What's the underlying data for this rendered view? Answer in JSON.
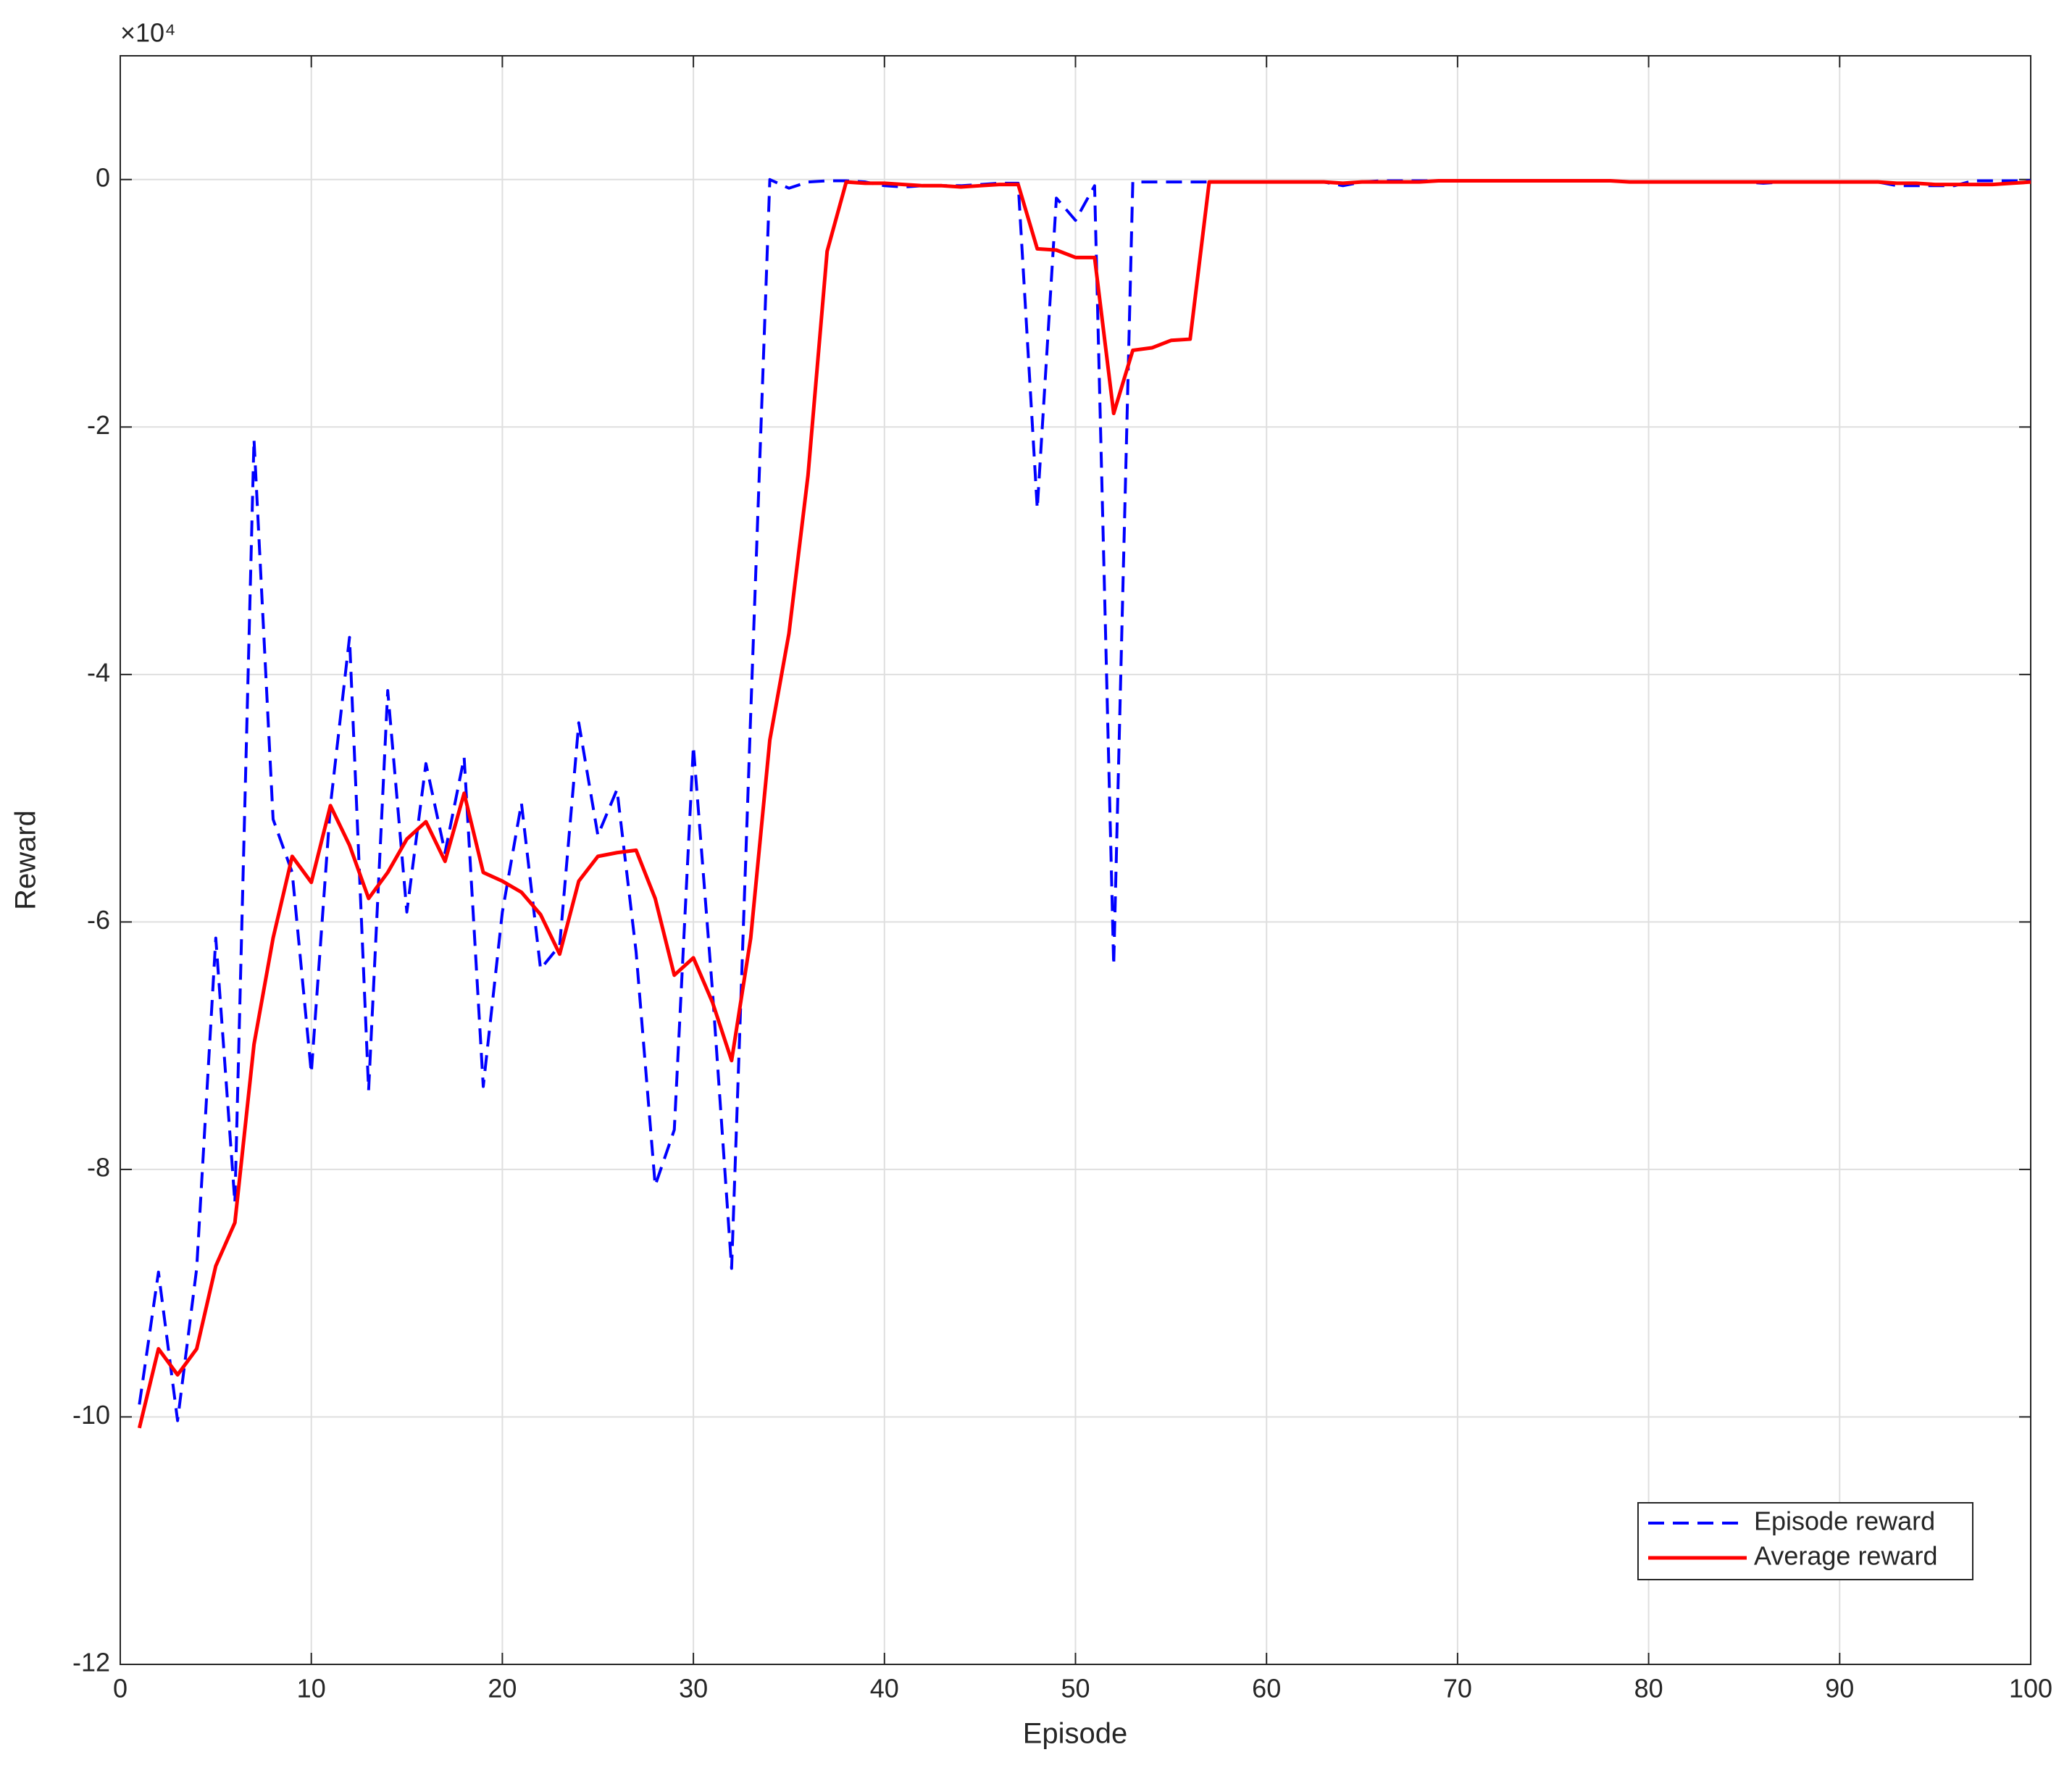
{
  "chart_data": {
    "type": "line",
    "x_label": "Episode",
    "y_label": "Reward",
    "y_exponent": "×10⁴",
    "x": [
      1,
      2,
      3,
      4,
      5,
      6,
      7,
      8,
      9,
      10,
      11,
      12,
      13,
      14,
      15,
      16,
      17,
      18,
      19,
      20,
      21,
      22,
      23,
      24,
      25,
      26,
      27,
      28,
      29,
      30,
      31,
      32,
      33,
      34,
      35,
      36,
      37,
      38,
      39,
      40,
      41,
      42,
      43,
      44,
      45,
      46,
      47,
      48,
      49,
      50,
      51,
      52,
      53,
      54,
      55,
      56,
      57,
      58,
      59,
      60,
      61,
      62,
      63,
      64,
      65,
      66,
      67,
      68,
      69,
      70,
      71,
      72,
      73,
      74,
      75,
      76,
      77,
      78,
      79,
      80,
      81,
      82,
      83,
      84,
      85,
      86,
      87,
      88,
      89,
      90,
      91,
      92,
      93,
      94,
      95,
      96,
      97,
      98,
      99,
      100
    ],
    "series": [
      {
        "name": "Episode reward",
        "color": "#0000ff",
        "dash": true,
        "values": [
          -9.9,
          -8.83,
          -10.03,
          -8.8,
          -6.13,
          -8.27,
          -2.1,
          -5.17,
          -5.6,
          -7.22,
          -5.06,
          -3.7,
          -7.36,
          -4.13,
          -5.92,
          -4.72,
          -5.44,
          -4.67,
          -7.33,
          -5.92,
          -5.04,
          -6.38,
          -6.19,
          -4.39,
          -5.3,
          -4.93,
          -6.24,
          -8.13,
          -7.68,
          -4.58,
          -6.56,
          -8.8,
          -4.32,
          0,
          -0.07,
          -0.02,
          -0.01,
          -0.01,
          -0.02,
          -0.05,
          -0.06,
          -0.05,
          -0.05,
          -0.05,
          -0.04,
          -0.03,
          -0.03,
          -2.66,
          -0.15,
          -0.33,
          -0.05,
          -6.35,
          -0.02,
          -0.02,
          -0.02,
          -0.02,
          -0.02,
          -0.02,
          -0.02,
          -0.02,
          -0.02,
          -0.02,
          -0.02,
          -0.05,
          -0.02,
          -0.01,
          -0.01,
          -0.01,
          -0.01,
          -0.01,
          -0.01,
          -0.01,
          -0.01,
          -0.01,
          -0.01,
          -0.01,
          -0.01,
          -0.01,
          -0.02,
          -0.02,
          -0.02,
          -0.02,
          -0.02,
          -0.02,
          -0.02,
          -0.03,
          -0.02,
          -0.02,
          -0.02,
          -0.02,
          -0.02,
          -0.02,
          -0.05,
          -0.05,
          -0.05,
          -0.05,
          -0.01,
          -0.01,
          -0.01,
          -0.01
        ]
      },
      {
        "name": "Average reward",
        "color": "#ff0000",
        "dash": false,
        "values": [
          -10.09,
          -9.45,
          -9.66,
          -9.45,
          -8.78,
          -8.43,
          -6.99,
          -6.13,
          -5.47,
          -5.68,
          -5.06,
          -5.38,
          -5.81,
          -5.6,
          -5.33,
          -5.19,
          -5.51,
          -4.96,
          -5.6,
          -5.67,
          -5.76,
          -5.94,
          -6.26,
          -5.67,
          -5.47,
          -5.44,
          -5.42,
          -5.81,
          -6.43,
          -6.29,
          -6.65,
          -7.12,
          -6.13,
          -4.53,
          -3.67,
          -2.39,
          -0.58,
          -0.02,
          -0.03,
          -0.03,
          -0.04,
          -0.05,
          -0.05,
          -0.06,
          -0.05,
          -0.04,
          -0.04,
          -0.56,
          -0.57,
          -0.63,
          -0.63,
          -1.89,
          -1.38,
          -1.36,
          -1.3,
          -1.29,
          -0.02,
          -0.02,
          -0.02,
          -0.02,
          -0.02,
          -0.02,
          -0.02,
          -0.03,
          -0.02,
          -0.02,
          -0.02,
          -0.02,
          -0.01,
          -0.01,
          -0.01,
          -0.01,
          -0.01,
          -0.01,
          -0.01,
          -0.01,
          -0.01,
          -0.01,
          -0.02,
          -0.02,
          -0.02,
          -0.02,
          -0.02,
          -0.02,
          -0.02,
          -0.02,
          -0.02,
          -0.02,
          -0.02,
          -0.02,
          -0.02,
          -0.02,
          -0.03,
          -0.03,
          -0.04,
          -0.04,
          -0.04,
          -0.04,
          -0.03,
          -0.02
        ]
      }
    ],
    "xlim": [
      0,
      100
    ],
    "xticks": [
      0,
      10,
      20,
      30,
      40,
      50,
      60,
      70,
      80,
      90,
      100
    ],
    "ylim": [
      -12,
      1
    ],
    "yticks": [
      -12,
      -10,
      -8,
      -6,
      -4,
      -2,
      0
    ],
    "grid": true,
    "legend": "lower right"
  }
}
